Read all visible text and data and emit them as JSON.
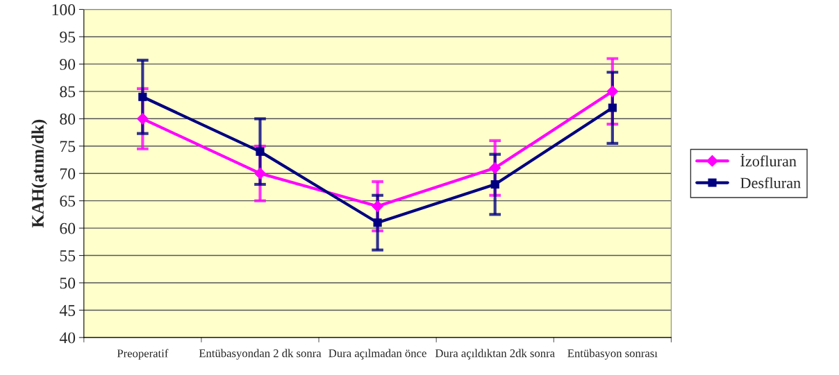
{
  "chart_data": {
    "type": "line",
    "ylabel": "KAH(atım/dk)",
    "categories": [
      "Preoperatif",
      "Entübasyondan 2 dk sonra",
      "Dura açılmadan önce",
      "Dura açıldıktan 2dk sonra",
      "Entübasyon sonrası"
    ],
    "series": [
      {
        "name": "İzofluran",
        "color": "#ff00ff",
        "marker": "diamond",
        "values": [
          80,
          70,
          64,
          71,
          85
        ],
        "errors": [
          5.5,
          5,
          4.5,
          5,
          6
        ]
      },
      {
        "name": "Desfluran",
        "color": "#000080",
        "marker": "square",
        "values": [
          84,
          74,
          61,
          68,
          82
        ],
        "errors": [
          6.7,
          6,
          5,
          5.5,
          6.5
        ]
      }
    ],
    "ylim": [
      40,
      100
    ],
    "yticks": [
      40,
      45,
      50,
      55,
      60,
      65,
      70,
      75,
      80,
      85,
      90,
      95,
      100
    ],
    "grid": "y",
    "legend": "right"
  }
}
